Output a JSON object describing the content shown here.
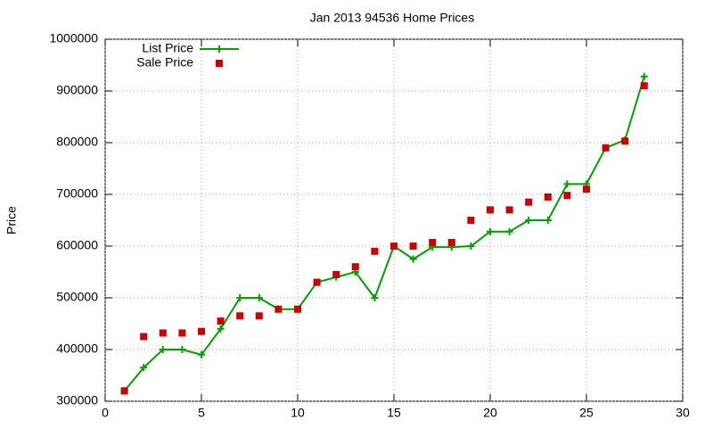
{
  "chart_data": {
    "type": "line",
    "title": "Jan 2013 94536 Home Prices",
    "y_label": "Price",
    "x": [
      1,
      2,
      3,
      4,
      5,
      6,
      7,
      8,
      9,
      10,
      11,
      12,
      13,
      14,
      15,
      16,
      17,
      18,
      19,
      20,
      21,
      22,
      23,
      24,
      25,
      26,
      27,
      28
    ],
    "series": [
      {
        "name": "List Price",
        "color": "#00a000",
        "style": "linespoints",
        "values": [
          320000,
          365000,
          400000,
          400000,
          390000,
          440000,
          500000,
          500000,
          478000,
          478000,
          530000,
          540000,
          550000,
          500000,
          600000,
          575000,
          598000,
          598000,
          600000,
          628000,
          628000,
          650000,
          650000,
          720000,
          720000,
          790000,
          805000,
          928000
        ]
      },
      {
        "name": "Sale Price",
        "color": "#cc0000",
        "style": "points",
        "values": [
          320000,
          425000,
          432000,
          432000,
          435000,
          455000,
          465000,
          465000,
          478000,
          478000,
          530000,
          545000,
          560000,
          590000,
          600000,
          600000,
          607000,
          607000,
          650000,
          670000,
          670000,
          685000,
          695000,
          698000,
          710000,
          790000,
          803000,
          910000
        ]
      }
    ],
    "xlim": [
      0,
      30
    ],
    "xticks": [
      0,
      5,
      10,
      15,
      20,
      25,
      30
    ],
    "ylim": [
      300000,
      1000000
    ],
    "yticks": [
      300000,
      400000,
      500000,
      600000,
      700000,
      800000,
      900000,
      1000000
    ],
    "grid": true,
    "legend": "top-left"
  }
}
